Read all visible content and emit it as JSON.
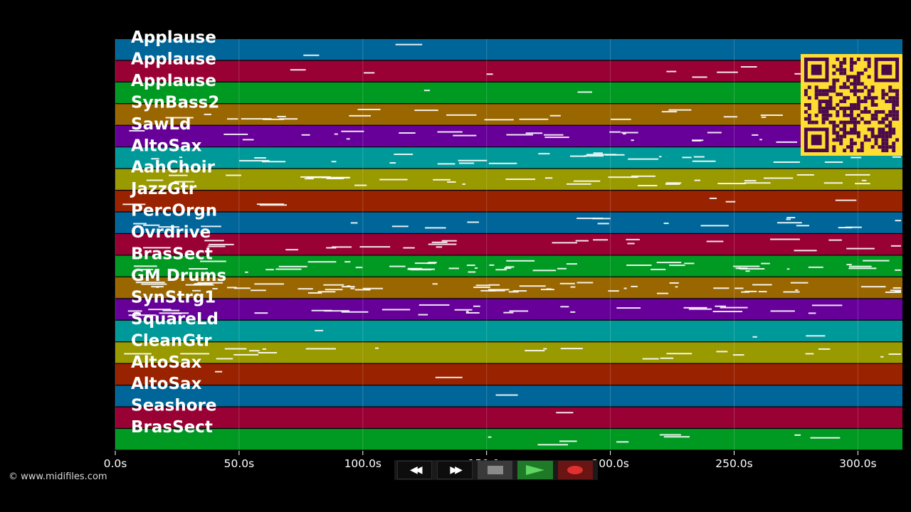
{
  "tracks": [
    {
      "name": "Applause",
      "color": "#006699"
    },
    {
      "name": "Applause",
      "color": "#990033"
    },
    {
      "name": "Applause",
      "color": "#009922"
    },
    {
      "name": "SynBass2",
      "color": "#996600"
    },
    {
      "name": "SawLd",
      "color": "#660099"
    },
    {
      "name": "AltoSax",
      "color": "#009999"
    },
    {
      "name": "AahChoir",
      "color": "#999900"
    },
    {
      "name": "JazzGtr",
      "color": "#992200"
    },
    {
      "name": "PercOrgn",
      "color": "#006699"
    },
    {
      "name": "Ovrdrive",
      "color": "#990033"
    },
    {
      "name": "BrasSect",
      "color": "#009922"
    },
    {
      "name": "GM Drums",
      "color": "#996600"
    },
    {
      "name": "SynStrg1",
      "color": "#660099"
    },
    {
      "name": "SquareLd",
      "color": "#009999"
    },
    {
      "name": "CleanGtr",
      "color": "#999900"
    },
    {
      "name": "AltoSax",
      "color": "#992200"
    },
    {
      "name": "AltoSax",
      "color": "#006699"
    },
    {
      "name": "Seashore",
      "color": "#990033"
    },
    {
      "name": "BrasSect",
      "color": "#009922"
    }
  ],
  "timeline": {
    "ticks": [
      "0.0s",
      "50.0s",
      "100.0s",
      "150.0s",
      "200.0s",
      "250.0s",
      "300.0s"
    ],
    "tick_values": [
      0,
      50,
      100,
      150,
      200,
      250,
      300
    ],
    "max_seconds": 318
  },
  "copyright": "© www.midifiles.com",
  "transport": {
    "rewind": "rewind-icon",
    "fast_forward": "fast-forward-icon",
    "stop": "stop-icon",
    "play": "play-icon",
    "record": "record-icon",
    "colors": {
      "play": "#5fd65f",
      "record": "#e03030",
      "stop": "#8a8a8a"
    }
  },
  "qr_colors": {
    "fg": "#4a0a4a",
    "bg": "#ffdd33"
  }
}
